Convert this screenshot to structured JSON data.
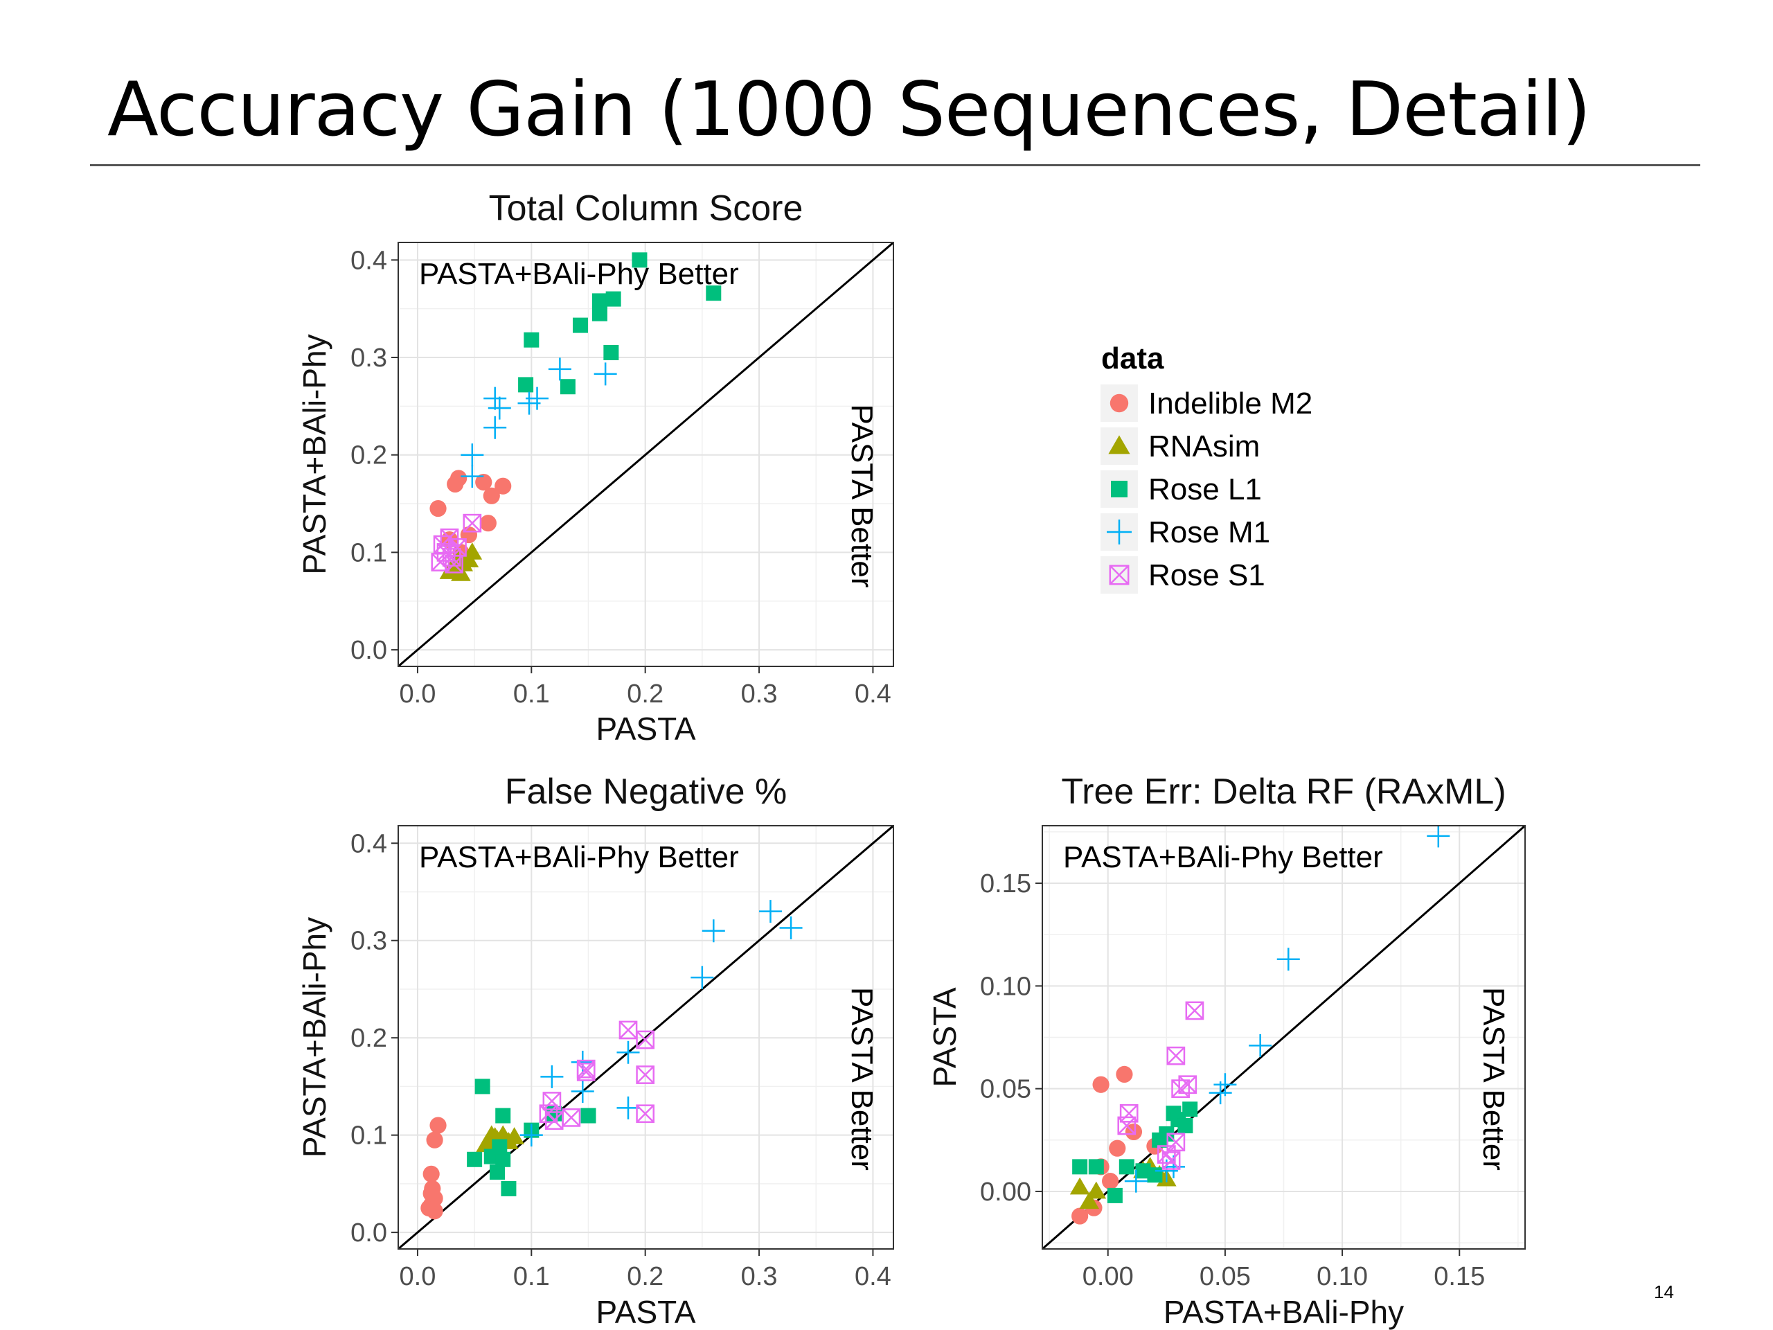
{
  "slide": {
    "title": "Accuracy Gain (1000 Sequences, Detail)",
    "page_number": "14"
  },
  "legend": {
    "title": "data",
    "entries": [
      {
        "label": "Indelible M2",
        "shape": "circle",
        "color": "#F8766D"
      },
      {
        "label": "RNAsim",
        "shape": "triangle",
        "color": "#A3A500"
      },
      {
        "label": "Rose L1",
        "shape": "square",
        "color": "#00BF7D"
      },
      {
        "label": "Rose M1",
        "shape": "plus",
        "color": "#00B0F6"
      },
      {
        "label": "Rose S1",
        "shape": "boxx",
        "color": "#E76BF3"
      }
    ]
  },
  "chart_data": [
    {
      "id": "tcs",
      "type": "scatter",
      "title": "Total Column Score",
      "xlabel": "PASTA",
      "ylabel": "PASTA+BAli-Phy",
      "xlim": [
        -0.017,
        0.418
      ],
      "ylim": [
        -0.017,
        0.418
      ],
      "xticks": [
        0.0,
        0.1,
        0.2,
        0.3,
        0.4
      ],
      "yticks": [
        0.0,
        0.1,
        0.2,
        0.3,
        0.4
      ],
      "tick_labels": [
        "0.0",
        "0.1",
        "0.2",
        "0.3",
        "0.4"
      ],
      "annotation_top": "PASTA+BAli-Phy Better",
      "annotation_side": "PASTA Better",
      "diagonal": true,
      "grid": true,
      "series": [
        {
          "name": "Indelible M2",
          "points": [
            [
              0.018,
              0.145
            ],
            [
              0.033,
              0.17
            ],
            [
              0.036,
              0.176
            ],
            [
              0.058,
              0.172
            ],
            [
              0.075,
              0.168
            ],
            [
              0.065,
              0.158
            ],
            [
              0.062,
              0.13
            ],
            [
              0.045,
              0.118
            ],
            [
              0.028,
              0.113
            ],
            [
              0.038,
              0.1
            ]
          ]
        },
        {
          "name": "RNAsim",
          "points": [
            [
              0.028,
              0.08
            ],
            [
              0.033,
              0.085
            ],
            [
              0.038,
              0.078
            ],
            [
              0.045,
              0.092
            ],
            [
              0.048,
              0.1
            ],
            [
              0.035,
              0.093
            ],
            [
              0.04,
              0.088
            ]
          ]
        },
        {
          "name": "Rose L1",
          "points": [
            [
              0.195,
              0.4
            ],
            [
              0.26,
              0.366
            ],
            [
              0.16,
              0.358
            ],
            [
              0.172,
              0.36
            ],
            [
              0.16,
              0.345
            ],
            [
              0.143,
              0.333
            ],
            [
              0.1,
              0.318
            ],
            [
              0.17,
              0.305
            ],
            [
              0.095,
              0.272
            ],
            [
              0.132,
              0.27
            ]
          ]
        },
        {
          "name": "Rose M1",
          "points": [
            [
              0.125,
              0.288
            ],
            [
              0.165,
              0.283
            ],
            [
              0.068,
              0.258
            ],
            [
              0.072,
              0.248
            ],
            [
              0.098,
              0.253
            ],
            [
              0.105,
              0.258
            ],
            [
              0.068,
              0.228
            ],
            [
              0.048,
              0.2
            ],
            [
              0.048,
              0.178
            ]
          ]
        },
        {
          "name": "Rose S1",
          "points": [
            [
              0.048,
              0.13
            ],
            [
              0.028,
              0.115
            ],
            [
              0.022,
              0.108
            ],
            [
              0.035,
              0.105
            ],
            [
              0.025,
              0.1
            ],
            [
              0.03,
              0.095
            ],
            [
              0.02,
              0.09
            ],
            [
              0.032,
              0.088
            ]
          ]
        }
      ]
    },
    {
      "id": "fn",
      "type": "scatter",
      "title": "False Negative %",
      "xlabel": "PASTA",
      "ylabel": "PASTA+BAli-Phy",
      "xlim": [
        -0.017,
        0.418
      ],
      "ylim": [
        -0.017,
        0.418
      ],
      "xticks": [
        0.0,
        0.1,
        0.2,
        0.3,
        0.4
      ],
      "yticks": [
        0.0,
        0.1,
        0.2,
        0.3,
        0.4
      ],
      "tick_labels": [
        "0.0",
        "0.1",
        "0.2",
        "0.3",
        "0.4"
      ],
      "annotation_top": "PASTA+BAli-Phy Better",
      "annotation_side": "PASTA Better",
      "diagonal": true,
      "grid": true,
      "series": [
        {
          "name": "Indelible M2",
          "points": [
            [
              0.018,
              0.11
            ],
            [
              0.015,
              0.095
            ],
            [
              0.012,
              0.06
            ],
            [
              0.013,
              0.045
            ],
            [
              0.015,
              0.035
            ],
            [
              0.012,
              0.028
            ],
            [
              0.015,
              0.022
            ],
            [
              0.01,
              0.025
            ],
            [
              0.012,
              0.04
            ]
          ]
        },
        {
          "name": "RNAsim",
          "points": [
            [
              0.065,
              0.1
            ],
            [
              0.07,
              0.095
            ],
            [
              0.075,
              0.1
            ],
            [
              0.08,
              0.093
            ],
            [
              0.06,
              0.09
            ],
            [
              0.068,
              0.098
            ],
            [
              0.085,
              0.098
            ]
          ]
        },
        {
          "name": "Rose L1",
          "points": [
            [
              0.057,
              0.15
            ],
            [
              0.075,
              0.12
            ],
            [
              0.12,
              0.122
            ],
            [
              0.15,
              0.12
            ],
            [
              0.1,
              0.105
            ],
            [
              0.05,
              0.075
            ],
            [
              0.065,
              0.078
            ],
            [
              0.07,
              0.062
            ],
            [
              0.075,
              0.075
            ],
            [
              0.08,
              0.045
            ],
            [
              0.072,
              0.088
            ]
          ]
        },
        {
          "name": "Rose M1",
          "points": [
            [
              0.31,
              0.33
            ],
            [
              0.328,
              0.313
            ],
            [
              0.26,
              0.31
            ],
            [
              0.25,
              0.262
            ],
            [
              0.185,
              0.185
            ],
            [
              0.145,
              0.175
            ],
            [
              0.118,
              0.16
            ],
            [
              0.185,
              0.128
            ],
            [
              0.145,
              0.145
            ],
            [
              0.1,
              0.1
            ]
          ]
        },
        {
          "name": "Rose S1",
          "points": [
            [
              0.185,
              0.208
            ],
            [
              0.2,
              0.198
            ],
            [
              0.2,
              0.162
            ],
            [
              0.148,
              0.168
            ],
            [
              0.148,
              0.165
            ],
            [
              0.118,
              0.135
            ],
            [
              0.2,
              0.122
            ],
            [
              0.12,
              0.115
            ],
            [
              0.135,
              0.118
            ],
            [
              0.115,
              0.122
            ]
          ]
        }
      ]
    },
    {
      "id": "rf",
      "type": "scatter",
      "title": "Tree Err: Delta RF (RAxML)",
      "xlabel": "PASTA+BAli-Phy",
      "ylabel": "PASTA",
      "xlim": [
        -0.028,
        0.178
      ],
      "ylim": [
        -0.028,
        0.178
      ],
      "xticks": [
        0.0,
        0.05,
        0.1,
        0.15
      ],
      "yticks": [
        0.0,
        0.05,
        0.1,
        0.15
      ],
      "tick_labels": [
        "0.00",
        "0.05",
        "0.10",
        "0.15"
      ],
      "annotation_top": "PASTA+BAli-Phy Better",
      "annotation_side": "PASTA Better",
      "diagonal": true,
      "grid": true,
      "series": [
        {
          "name": "Indelible M2",
          "points": [
            [
              -0.003,
              0.052
            ],
            [
              0.007,
              0.057
            ],
            [
              0.011,
              0.029
            ],
            [
              0.004,
              0.021
            ],
            [
              -0.012,
              -0.012
            ],
            [
              -0.006,
              -0.008
            ],
            [
              0.001,
              0.005
            ],
            [
              -0.003,
              0.012
            ],
            [
              0.02,
              0.022
            ]
          ]
        },
        {
          "name": "RNAsim",
          "points": [
            [
              -0.012,
              0.002
            ],
            [
              -0.008,
              -0.005
            ],
            [
              -0.005,
              0.0
            ],
            [
              0.018,
              0.012
            ],
            [
              0.022,
              0.008
            ],
            [
              0.025,
              0.006
            ],
            [
              0.015,
              0.01
            ]
          ]
        },
        {
          "name": "Rose L1",
          "points": [
            [
              0.035,
              0.04
            ],
            [
              0.028,
              0.038
            ],
            [
              0.03,
              0.035
            ],
            [
              0.033,
              0.032
            ],
            [
              0.025,
              0.028
            ],
            [
              0.022,
              0.025
            ],
            [
              -0.012,
              0.012
            ],
            [
              -0.005,
              0.012
            ],
            [
              0.003,
              -0.002
            ],
            [
              0.015,
              0.01
            ],
            [
              0.02,
              0.008
            ],
            [
              0.008,
              0.012
            ]
          ]
        },
        {
          "name": "Rose M1",
          "points": [
            [
              0.141,
              0.173
            ],
            [
              0.077,
              0.113
            ],
            [
              0.065,
              0.071
            ],
            [
              0.048,
              0.048
            ],
            [
              0.05,
              0.052
            ],
            [
              0.028,
              0.012
            ],
            [
              0.025,
              0.01
            ],
            [
              0.012,
              0.005
            ]
          ]
        },
        {
          "name": "Rose S1",
          "points": [
            [
              0.037,
              0.088
            ],
            [
              0.029,
              0.066
            ],
            [
              0.034,
              0.052
            ],
            [
              0.031,
              0.05
            ],
            [
              0.009,
              0.038
            ],
            [
              0.008,
              0.032
            ],
            [
              0.029,
              0.024
            ],
            [
              0.025,
              0.018
            ],
            [
              0.027,
              0.015
            ]
          ]
        }
      ]
    }
  ]
}
